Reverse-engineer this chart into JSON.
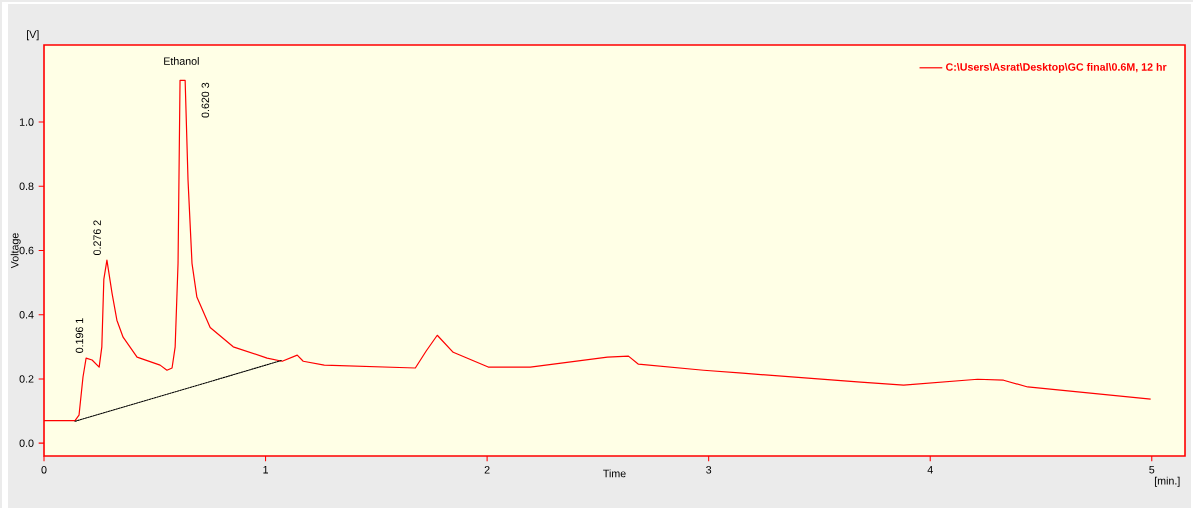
{
  "chart_data": {
    "type": "line",
    "xlabel": "Time",
    "ylabel": "Voltage",
    "xlim": [
      0,
      5.15
    ],
    "ylim": [
      -0.04,
      1.24
    ],
    "xticks": [
      0,
      1,
      2,
      3,
      4,
      5
    ],
    "yticks": [
      {
        "value": 0,
        "label": "0.0"
      },
      {
        "value": 0.2,
        "label": "0.2"
      },
      {
        "value": 0.4,
        "label": "0.4"
      },
      {
        "value": 0.6,
        "label": "0.6"
      },
      {
        "value": 0.8,
        "label": "0.8"
      },
      {
        "value": 1,
        "label": "1.0"
      }
    ],
    "legend": "top right",
    "series": [
      {
        "name": "C:\\Users\\Asrat\\Desktop\\GC final\\0.6M, 12 hr",
        "color": "#ff0000",
        "x": [
          0,
          0.14,
          0.158,
          0.176,
          0.19,
          0.217,
          0.249,
          0.261,
          0.27,
          0.284,
          0.307,
          0.329,
          0.357,
          0.42,
          0.524,
          0.555,
          0.578,
          0.592,
          0.605,
          0.614,
          0.637,
          0.65,
          0.668,
          0.69,
          0.75,
          0.854,
          1.007,
          1.075,
          1.143,
          1.17,
          1.265,
          1.676,
          1.725,
          1.775,
          1.847,
          2.005,
          2.195,
          2.543,
          2.638,
          2.683,
          2.977,
          3.153,
          3.686,
          3.88,
          4.214,
          4.331,
          4.44,
          4.995
        ],
        "values": [
          0.07,
          0.07,
          0.087,
          0.206,
          0.265,
          0.259,
          0.237,
          0.3,
          0.51,
          0.57,
          0.467,
          0.383,
          0.33,
          0.268,
          0.243,
          0.227,
          0.234,
          0.3,
          0.56,
          1.13,
          1.13,
          0.82,
          0.56,
          0.455,
          0.36,
          0.3,
          0.265,
          0.255,
          0.274,
          0.255,
          0.243,
          0.234,
          0.287,
          0.336,
          0.283,
          0.237,
          0.237,
          0.268,
          0.271,
          0.246,
          0.227,
          0.218,
          0.19,
          0.181,
          0.199,
          0.196,
          0.175,
          0.137
        ]
      },
      {
        "color": "#000000",
        "line_style": "dotted",
        "x": [
          0.14,
          1.075
        ],
        "values": [
          0.068,
          0.258
        ]
      }
    ],
    "annotations": [
      "[V]",
      "[min.]",
      {
        "text": "Ethanol",
        "x": 0.62,
        "y": 1.13
      },
      {
        "text": "0.196 1",
        "x": 0.196,
        "y": 0.265
      },
      {
        "text": "0.276 2",
        "x": 0.276,
        "y": 0.57
      },
      {
        "text": "0.620 3",
        "x": 0.62,
        "y": 1.13
      }
    ]
  }
}
